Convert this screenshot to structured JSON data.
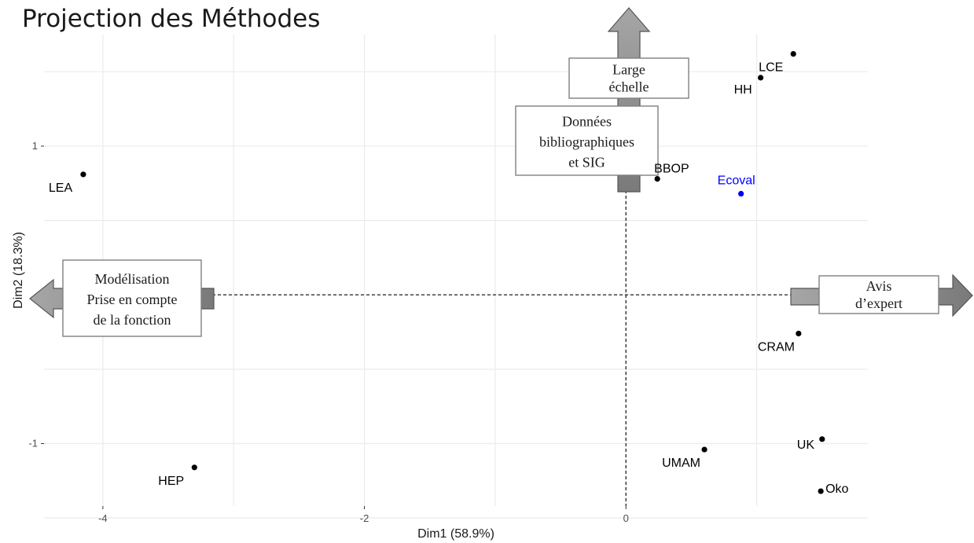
{
  "title": "Projection des Méthodes",
  "chart_data": {
    "type": "scatter",
    "xlabel": "Dim1 (58.9%)",
    "ylabel": "Dim2 (18.3%)",
    "xlim": [
      -4.45,
      1.85
    ],
    "ylim": [
      -1.42,
      1.75
    ],
    "x_ticks": [
      -4,
      -2,
      0
    ],
    "y_ticks": [
      -1,
      1
    ],
    "grid": true,
    "points": [
      {
        "label": "LCE",
        "x": 1.28,
        "y": 1.62,
        "color": "#000000"
      },
      {
        "label": "HH",
        "x": 1.03,
        "y": 1.46,
        "color": "#000000"
      },
      {
        "label": "BBOP",
        "x": 0.24,
        "y": 0.78,
        "color": "#000000"
      },
      {
        "label": "Ecoval",
        "x": 0.88,
        "y": 0.68,
        "color": "#0000ff"
      },
      {
        "label": "LEA",
        "x": -4.15,
        "y": 0.81,
        "color": "#000000"
      },
      {
        "label": "CRAM",
        "x": 1.32,
        "y": -0.26,
        "color": "#000000"
      },
      {
        "label": "UK",
        "x": 1.5,
        "y": -0.97,
        "color": "#000000"
      },
      {
        "label": "UMAM",
        "x": 0.6,
        "y": -1.04,
        "color": "#000000"
      },
      {
        "label": "Oko",
        "x": 1.49,
        "y": -1.32,
        "color": "#000000"
      },
      {
        "label": "HEP",
        "x": -3.3,
        "y": -1.16,
        "color": "#000000"
      }
    ],
    "annotations": {
      "top": [
        "Large",
        "échelle"
      ],
      "top_inner": [
        "Données",
        "bibliographiques",
        "et SIG"
      ],
      "left": [
        "Modélisation",
        "Prise en compte",
        "de la fonction"
      ],
      "right": [
        "Avis",
        "d’expert"
      ]
    },
    "colors": {
      "arrow_fill": "#8c8c8c",
      "grid": "#ebebeb",
      "highlight": "#0000ff"
    }
  }
}
